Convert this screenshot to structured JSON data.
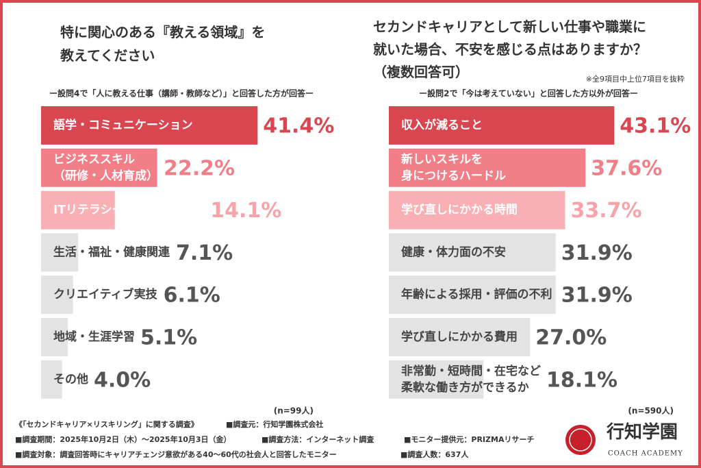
{
  "chart_data": [
    {
      "type": "bar",
      "orientation": "horizontal",
      "title": "特に関心のある『教える領域』を\n教えてください",
      "subtitle": "ー設問4で「人に教える仕事（講師・教師など）」と回答した方が回答ー",
      "sample": "(n=99人)",
      "categories": [
        "語学・コミュニケーション",
        "ビジネススキル\n（研修・人材育成）",
        "ITリテラシー・デジタル活用",
        "生活・福祉・健康関連",
        "クリエイティブ実技",
        "地域・生涯学習",
        "その他"
      ],
      "values": [
        41.4,
        22.2,
        14.1,
        7.1,
        6.1,
        5.1,
        4.0
      ],
      "value_labels": [
        "41.4%",
        "22.2%",
        "14.1%",
        "7.1%",
        "6.1%",
        "5.1%",
        "4.0%"
      ],
      "colors": [
        "#d9464f",
        "#f27f87",
        "#f9b0b5",
        "#e3e3e3",
        "#e3e3e3",
        "#e3e3e3",
        "#e3e3e3"
      ],
      "label_colors": [
        "#ffffff",
        "#ffffff",
        "#ffffff",
        "#444444",
        "#444444",
        "#444444",
        "#444444"
      ],
      "value_label_colors": [
        "#d9464f",
        "#f27f87",
        "#f7a3a9",
        "#555555",
        "#555555",
        "#555555",
        "#555555"
      ],
      "xlim": [
        0,
        50
      ]
    },
    {
      "type": "bar",
      "orientation": "horizontal",
      "title": "セカンドキャリアとして新しい仕事や職業に\n就いた場合、不安を感じる点はありますか？\n（複数回答可）",
      "note": "※全9項目中上位7項目を抜粋",
      "subtitle": "ー設問2で「今は考えていない」と回答した方以外が回答ー",
      "sample": "(n=590人)",
      "categories": [
        "収入が減ること",
        "新しいスキルを\n身につけるハードル",
        "学び直しにかかる時間",
        "健康・体力面の不安",
        "年齢による採用・評価の不利",
        "学び直しにかかる費用",
        "非常勤・短時間・在宅など\n柔軟な働き方ができるか"
      ],
      "values": [
        43.1,
        37.6,
        33.7,
        31.9,
        31.9,
        27.0,
        18.1
      ],
      "value_labels": [
        "43.1%",
        "37.6%",
        "33.7%",
        "31.9%",
        "31.9%",
        "27.0%",
        "18.1%"
      ],
      "colors": [
        "#d9464f",
        "#f27f87",
        "#f9b0b5",
        "#e3e3e3",
        "#e3e3e3",
        "#e3e3e3",
        "#e3e3e3"
      ],
      "label_colors": [
        "#ffffff",
        "#ffffff",
        "#ffffff",
        "#444444",
        "#444444",
        "#444444",
        "#444444"
      ],
      "value_label_colors": [
        "#d9464f",
        "#f27f87",
        "#f7a3a9",
        "#555555",
        "#555555",
        "#555555",
        "#555555"
      ],
      "xlim": [
        0,
        50
      ]
    }
  ],
  "footer": {
    "survey_name": "《「セカンドキャリア×リスキリング」に関する調査》",
    "source": "■調査元：行知学園株式会社",
    "period": "■調査期間：2025年10月2日（木）～2025年10月3日（金）",
    "method": "■調査方法：インターネット調査",
    "monitor": "■モニター提供元：PRIZMAリサーチ",
    "target": "■調査対象：調査回答時にキャリアチェンジ意欲がある40～60代の社会人と回答したモニター",
    "count": "■調査人数：637人"
  },
  "logo": {
    "name": "行知学園",
    "sub": "COACH ACADEMY"
  }
}
